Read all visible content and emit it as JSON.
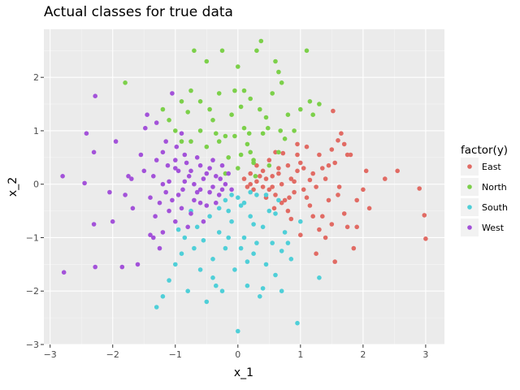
{
  "chart_data": {
    "type": "scatter",
    "title": "Actual classes for true data",
    "xlabel": "x_1",
    "ylabel": "x_2",
    "xlim": [
      -3.1,
      3.3
    ],
    "ylim": [
      -3.0,
      2.9
    ],
    "x_ticks": [
      -3,
      -2,
      -1,
      0,
      1,
      2,
      3
    ],
    "y_ticks": [
      -3,
      -2,
      -1,
      0,
      1,
      2
    ],
    "grid": true,
    "legend": {
      "title": "factor(y)",
      "placement": "right"
    },
    "series": [
      {
        "name": "East",
        "color": "#e16b64",
        "points": [
          [
            0.1,
            0.1
          ],
          [
            0.2,
            0.2
          ],
          [
            0.3,
            0.05
          ],
          [
            0.4,
            0.25
          ],
          [
            0.45,
            0.1
          ],
          [
            0.5,
            -0.1
          ],
          [
            0.55,
            0.15
          ],
          [
            0.6,
            -0.2
          ],
          [
            0.65,
            0.3
          ],
          [
            0.7,
            0.0
          ],
          [
            0.75,
            -0.3
          ],
          [
            0.8,
            0.35
          ],
          [
            0.85,
            0.1
          ],
          [
            0.9,
            -0.15
          ],
          [
            0.95,
            0.25
          ],
          [
            1.0,
            0.4
          ],
          [
            1.05,
            -0.1
          ],
          [
            1.1,
            0.7
          ],
          [
            1.15,
            -0.4
          ],
          [
            1.2,
            0.2
          ],
          [
            1.25,
            -0.05
          ],
          [
            1.3,
            0.55
          ],
          [
            1.35,
            -0.6
          ],
          [
            1.4,
            0.1
          ],
          [
            1.45,
            -0.3
          ],
          [
            1.5,
            0.65
          ],
          [
            1.55,
            0.4
          ],
          [
            1.6,
            -0.2
          ],
          [
            1.65,
            0.95
          ],
          [
            1.7,
            0.75
          ],
          [
            1.75,
            -0.8
          ],
          [
            1.8,
            0.55
          ],
          [
            1.85,
            -1.2
          ],
          [
            1.9,
            -0.3
          ],
          [
            2.05,
            0.25
          ],
          [
            2.1,
            -0.45
          ],
          [
            2.35,
            0.1
          ],
          [
            2.55,
            0.25
          ],
          [
            2.9,
            -0.08
          ],
          [
            2.98,
            -0.58
          ],
          [
            3.0,
            -1.02
          ],
          [
            1.55,
            -1.45
          ],
          [
            1.5,
            -0.75
          ],
          [
            1.4,
            -1.0
          ],
          [
            1.3,
            -0.85
          ],
          [
            1.2,
            -0.6
          ],
          [
            1.1,
            -0.25
          ],
          [
            1.05,
            0.3
          ],
          [
            0.95,
            0.55
          ],
          [
            0.9,
            0.05
          ],
          [
            0.8,
            -0.5
          ],
          [
            0.7,
            -0.35
          ],
          [
            0.6,
            0.6
          ],
          [
            0.55,
            -0.05
          ],
          [
            0.5,
            0.45
          ],
          [
            0.45,
            -0.25
          ],
          [
            0.35,
            0.15
          ],
          [
            0.3,
            0.35
          ],
          [
            0.25,
            -0.1
          ],
          [
            0.2,
            0.0
          ],
          [
            1.52,
            1.37
          ],
          [
            1.6,
            0.82
          ],
          [
            1.75,
            0.55
          ],
          [
            0.72,
            0.58
          ],
          [
            1.35,
            0.3
          ],
          [
            1.15,
            0.08
          ],
          [
            0.85,
            -0.65
          ],
          [
            1.0,
            -0.95
          ],
          [
            1.62,
            -0.05
          ],
          [
            1.9,
            -0.8
          ],
          [
            0.65,
            0.2
          ],
          [
            0.82,
            -0.25
          ],
          [
            0.58,
            -0.45
          ],
          [
            1.45,
            0.35
          ],
          [
            1.25,
            -1.3
          ],
          [
            1.7,
            -0.55
          ],
          [
            0.95,
            0.75
          ],
          [
            0.4,
            -0.05
          ],
          [
            0.15,
            -0.05
          ],
          [
            2.0,
            -0.1
          ]
        ]
      },
      {
        "name": "North",
        "color": "#7cd04a",
        "points": [
          [
            -1.8,
            1.9
          ],
          [
            -1.2,
            1.4
          ],
          [
            -1.1,
            1.2
          ],
          [
            -1.0,
            1.0
          ],
          [
            -0.9,
            0.8
          ],
          [
            -0.8,
            1.35
          ],
          [
            -0.75,
            1.75
          ],
          [
            -0.7,
            2.5
          ],
          [
            -0.6,
            1.0
          ],
          [
            -0.5,
            0.7
          ],
          [
            -0.5,
            2.3
          ],
          [
            -0.4,
            1.2
          ],
          [
            -0.3,
            1.7
          ],
          [
            -0.25,
            2.5
          ],
          [
            -0.2,
            0.9
          ],
          [
            -0.1,
            1.3
          ],
          [
            -0.05,
            1.75
          ],
          [
            0.0,
            2.2
          ],
          [
            0.05,
            0.55
          ],
          [
            0.1,
            1.05
          ],
          [
            0.15,
            0.75
          ],
          [
            0.2,
            1.6
          ],
          [
            0.25,
            0.4
          ],
          [
            0.3,
            2.5
          ],
          [
            0.35,
            1.4
          ],
          [
            0.4,
            0.95
          ],
          [
            0.45,
            1.25
          ],
          [
            0.5,
            0.35
          ],
          [
            0.55,
            1.7
          ],
          [
            0.6,
            2.3
          ],
          [
            0.65,
            0.6
          ],
          [
            0.7,
            1.9
          ],
          [
            0.75,
            0.85
          ],
          [
            0.8,
            1.3
          ],
          [
            0.9,
            1.0
          ],
          [
            1.0,
            1.4
          ],
          [
            1.1,
            2.5
          ],
          [
            1.2,
            1.3
          ],
          [
            1.3,
            1.5
          ],
          [
            0.37,
            2.68
          ],
          [
            -0.3,
            0.8
          ],
          [
            -0.15,
            0.5
          ],
          [
            0.0,
            0.3
          ],
          [
            0.2,
            0.6
          ],
          [
            0.25,
            0.45
          ],
          [
            -0.05,
            0.9
          ],
          [
            -0.6,
            1.55
          ],
          [
            -0.45,
            1.4
          ],
          [
            0.1,
            1.75
          ],
          [
            0.65,
            2.1
          ],
          [
            -0.9,
            1.55
          ],
          [
            -0.2,
            0.2
          ],
          [
            0.28,
            0.15
          ],
          [
            0.48,
            1.05
          ],
          [
            0.68,
            1.0
          ],
          [
            -0.75,
            0.8
          ],
          [
            -0.35,
            0.95
          ],
          [
            0.05,
            1.45
          ],
          [
            0.18,
            0.95
          ],
          [
            1.15,
            1.55
          ]
        ]
      },
      {
        "name": "South",
        "color": "#4fcfd8",
        "points": [
          [
            -1.3,
            -2.3
          ],
          [
            -1.2,
            -2.1
          ],
          [
            -1.1,
            -1.8
          ],
          [
            -1.0,
            -1.5
          ],
          [
            -0.9,
            -1.3
          ],
          [
            -0.85,
            -1.0
          ],
          [
            -0.8,
            -2.0
          ],
          [
            -0.7,
            -1.2
          ],
          [
            -0.65,
            -0.8
          ],
          [
            -0.6,
            -1.6
          ],
          [
            -0.5,
            -2.2
          ],
          [
            -0.45,
            -0.6
          ],
          [
            -0.4,
            -1.4
          ],
          [
            -0.35,
            -1.9
          ],
          [
            -0.3,
            -0.9
          ],
          [
            -0.25,
            -2.0
          ],
          [
            -0.2,
            -1.2
          ],
          [
            -0.15,
            -0.5
          ],
          [
            -0.1,
            -0.7
          ],
          [
            -0.05,
            -1.6
          ],
          [
            0.0,
            -2.75
          ],
          [
            0.05,
            -0.4
          ],
          [
            0.1,
            -1.0
          ],
          [
            0.15,
            -1.9
          ],
          [
            0.2,
            -0.6
          ],
          [
            0.25,
            -1.3
          ],
          [
            0.3,
            -0.2
          ],
          [
            0.35,
            -2.1
          ],
          [
            0.4,
            -0.8
          ],
          [
            0.45,
            -1.5
          ],
          [
            0.5,
            -0.5
          ],
          [
            0.55,
            -1.1
          ],
          [
            0.6,
            -1.7
          ],
          [
            0.65,
            -0.3
          ],
          [
            0.7,
            -2.0
          ],
          [
            0.75,
            -0.9
          ],
          [
            0.85,
            -1.4
          ],
          [
            0.95,
            -2.6
          ],
          [
            1.0,
            -0.7
          ],
          [
            1.3,
            -1.75
          ],
          [
            -0.2,
            -0.3
          ],
          [
            -0.1,
            -0.2
          ],
          [
            0.0,
            -0.25
          ],
          [
            0.1,
            -0.35
          ],
          [
            0.2,
            -0.15
          ],
          [
            -0.3,
            -0.45
          ],
          [
            0.15,
            -1.45
          ],
          [
            -0.55,
            -1.05
          ],
          [
            0.4,
            -1.95
          ],
          [
            0.3,
            -1.1
          ],
          [
            -0.75,
            -0.5
          ],
          [
            0.6,
            -0.55
          ],
          [
            -0.15,
            -1.0
          ],
          [
            0.05,
            -1.2
          ],
          [
            -0.4,
            -1.75
          ],
          [
            0.25,
            -0.75
          ],
          [
            0.8,
            -1.1
          ],
          [
            -0.95,
            -0.85
          ],
          [
            0.45,
            -0.2
          ],
          [
            0.7,
            -1.25
          ]
        ]
      },
      {
        "name": "West",
        "color": "#a352d9",
        "points": [
          [
            -2.8,
            0.15
          ],
          [
            -2.78,
            -1.65
          ],
          [
            -2.45,
            0.02
          ],
          [
            -2.42,
            0.95
          ],
          [
            -2.3,
            0.6
          ],
          [
            -2.28,
            1.65
          ],
          [
            -2.3,
            -0.75
          ],
          [
            -2.28,
            -1.55
          ],
          [
            -2.05,
            -0.15
          ],
          [
            -2.0,
            -0.7
          ],
          [
            -1.95,
            0.8
          ],
          [
            -1.85,
            -1.55
          ],
          [
            -1.8,
            -0.2
          ],
          [
            -1.75,
            0.15
          ],
          [
            -1.7,
            0.1
          ],
          [
            -1.6,
            -1.5
          ],
          [
            -1.5,
            0.25
          ],
          [
            -1.45,
            1.3
          ],
          [
            -1.4,
            -0.25
          ],
          [
            -1.35,
            -1.0
          ],
          [
            -1.3,
            0.45
          ],
          [
            -1.25,
            -1.2
          ],
          [
            -1.2,
            0.0
          ],
          [
            -1.15,
            0.8
          ],
          [
            -1.1,
            -0.5
          ],
          [
            -1.05,
            1.7
          ],
          [
            -1.0,
            0.3
          ],
          [
            -0.95,
            -0.2
          ],
          [
            -0.9,
            0.95
          ],
          [
            -0.85,
            0.05
          ],
          [
            -0.8,
            -0.8
          ],
          [
            -0.75,
            0.25
          ],
          [
            -0.7,
            -0.3
          ],
          [
            -0.65,
            0.5
          ],
          [
            -0.6,
            -0.1
          ],
          [
            -0.55,
            0.1
          ],
          [
            -0.5,
            -0.4
          ],
          [
            -0.45,
            0.3
          ],
          [
            -0.4,
            -0.05
          ],
          [
            -0.35,
            0.15
          ],
          [
            -0.3,
            -0.2
          ],
          [
            -0.25,
            0.35
          ],
          [
            -0.2,
            0.0
          ],
          [
            -0.15,
            0.2
          ],
          [
            -0.1,
            -0.1
          ],
          [
            -1.55,
            0.55
          ],
          [
            -1.35,
            0.15
          ],
          [
            -1.2,
            0.6
          ],
          [
            -1.0,
            -0.7
          ],
          [
            -0.85,
            0.55
          ],
          [
            -1.1,
            0.05
          ],
          [
            -0.95,
            0.25
          ],
          [
            -0.7,
            0.0
          ],
          [
            -0.5,
            0.2
          ],
          [
            -0.6,
            0.35
          ],
          [
            -1.25,
            -0.35
          ],
          [
            -1.4,
            -0.95
          ],
          [
            -1.05,
            -0.3
          ],
          [
            -0.9,
            -0.45
          ],
          [
            -0.75,
            -0.55
          ],
          [
            -1.15,
            -0.15
          ],
          [
            -1.3,
            1.15
          ],
          [
            -1.48,
            1.05
          ],
          [
            -0.98,
            0.7
          ],
          [
            -0.82,
            0.4
          ],
          [
            -1.68,
            -0.45
          ],
          [
            -1.2,
            -0.9
          ],
          [
            -0.65,
            -0.15
          ],
          [
            -0.35,
            -0.35
          ],
          [
            -0.28,
            0.1
          ],
          [
            -1.0,
            0.45
          ],
          [
            -1.12,
            0.35
          ],
          [
            -0.88,
            -0.1
          ],
          [
            -0.6,
            -0.35
          ],
          [
            -0.45,
            -0.15
          ],
          [
            -0.4,
            0.45
          ],
          [
            -1.32,
            -0.6
          ],
          [
            -0.78,
            0.15
          ],
          [
            -0.55,
            -0.7
          ],
          [
            -0.25,
            -0.1
          ]
        ]
      }
    ]
  }
}
